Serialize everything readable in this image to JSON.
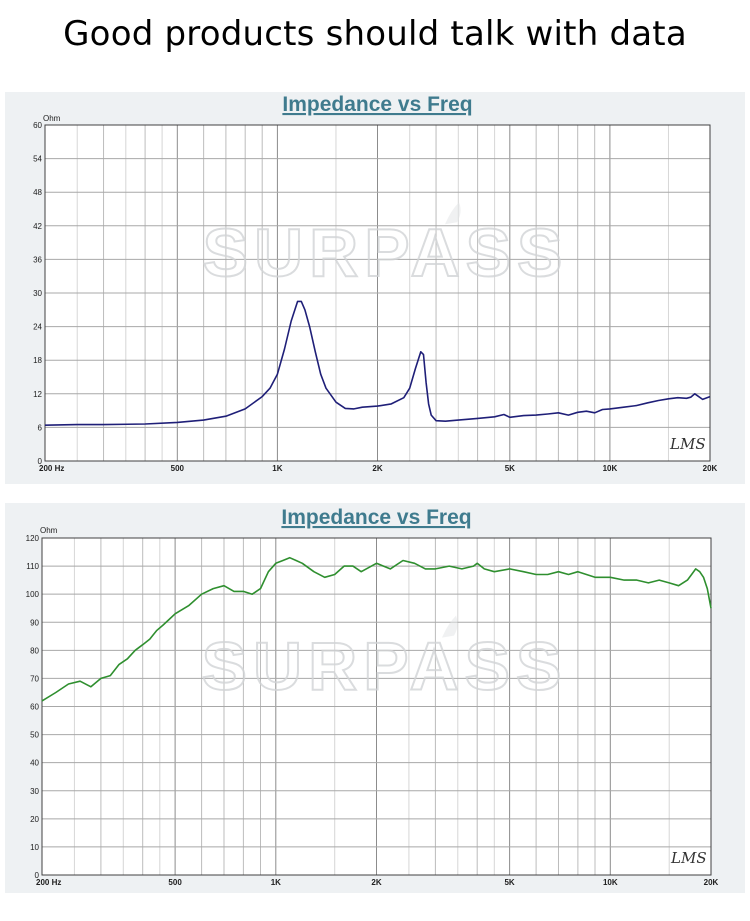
{
  "headline": "Good products should talk with data",
  "watermark": "SURPASS",
  "badge": "LMS",
  "chart_data": [
    {
      "type": "line",
      "title": "Impedance vs Freq",
      "ylabel": "Ohm",
      "xscale": "log",
      "xlim": [
        200,
        20000
      ],
      "ylim": [
        0,
        60
      ],
      "yticks": [
        "60",
        "54",
        "48",
        "42",
        "36",
        "30",
        "24",
        "18",
        "12",
        "6",
        "0"
      ],
      "xticks": [
        {
          "v": 200,
          "label": "200  Hz"
        },
        {
          "v": 500,
          "label": "500"
        },
        {
          "v": 1000,
          "label": "1K"
        },
        {
          "v": 2000,
          "label": "2K"
        },
        {
          "v": 5000,
          "label": "5K"
        },
        {
          "v": 10000,
          "label": "10K"
        },
        {
          "v": 20000,
          "label": "20K"
        }
      ],
      "grid": true,
      "color": "#1f1f78",
      "series": [
        {
          "x": [
            200,
            250,
            300,
            400,
            500,
            600,
            700,
            800,
            900,
            950,
            1000,
            1050,
            1100,
            1150,
            1180,
            1210,
            1250,
            1300,
            1350,
            1400,
            1500,
            1600,
            1700,
            1800,
            2000,
            2200,
            2400,
            2500,
            2600,
            2700,
            2750,
            2800,
            2850,
            2900,
            3000,
            3200,
            3500,
            4000,
            4500,
            4800,
            5000,
            5500,
            6000,
            6500,
            7000,
            7500,
            8000,
            8500,
            9000,
            9500,
            10000,
            11000,
            12000,
            13000,
            14000,
            15000,
            16000,
            17000,
            17500,
            18000,
            19000,
            20000
          ],
          "y": [
            6.4,
            6.5,
            6.5,
            6.6,
            6.9,
            7.3,
            8.0,
            9.3,
            11.5,
            13.0,
            15.5,
            20.0,
            25.0,
            28.5,
            28.5,
            27.0,
            24.0,
            19.5,
            15.5,
            13.0,
            10.5,
            9.4,
            9.3,
            9.6,
            9.8,
            10.2,
            11.3,
            13.0,
            16.5,
            19.5,
            19.0,
            14.0,
            10.2,
            8.2,
            7.2,
            7.1,
            7.3,
            7.6,
            7.9,
            8.3,
            7.8,
            8.1,
            8.2,
            8.4,
            8.6,
            8.2,
            8.7,
            8.9,
            8.6,
            9.2,
            9.3,
            9.6,
            9.9,
            10.4,
            10.8,
            11.1,
            11.3,
            11.2,
            11.4,
            12.0,
            11.0,
            11.5
          ]
        }
      ]
    },
    {
      "type": "line",
      "title": "Impedance vs Freq",
      "ylabel": "Ohm",
      "xscale": "log",
      "xlim": [
        200,
        20000
      ],
      "ylim": [
        0,
        120
      ],
      "yticks": [
        "120",
        "110",
        "100",
        "90",
        "80",
        "70",
        "60",
        "50",
        "40",
        "30",
        "20",
        "10",
        "0"
      ],
      "xticks": [
        {
          "v": 200,
          "label": "200  Hz"
        },
        {
          "v": 500,
          "label": "500"
        },
        {
          "v": 1000,
          "label": "1K"
        },
        {
          "v": 2000,
          "label": "2K"
        },
        {
          "v": 5000,
          "label": "5K"
        },
        {
          "v": 10000,
          "label": "10K"
        },
        {
          "v": 20000,
          "label": "20K"
        }
      ],
      "grid": true,
      "color": "#2f8f2f",
      "series": [
        {
          "x": [
            200,
            220,
            240,
            260,
            280,
            300,
            320,
            340,
            360,
            380,
            400,
            420,
            440,
            460,
            480,
            500,
            550,
            600,
            650,
            700,
            750,
            800,
            850,
            900,
            950,
            1000,
            1050,
            1100,
            1150,
            1200,
            1300,
            1400,
            1500,
            1600,
            1700,
            1800,
            2000,
            2200,
            2400,
            2600,
            2800,
            3000,
            3300,
            3600,
            3900,
            4000,
            4200,
            4500,
            5000,
            5500,
            6000,
            6500,
            7000,
            7500,
            8000,
            9000,
            10000,
            11000,
            12000,
            13000,
            14000,
            15000,
            16000,
            17000,
            17500,
            18000,
            18500,
            19000,
            19500,
            20000
          ],
          "y": [
            62,
            65,
            68,
            69,
            67,
            70,
            71,
            75,
            77,
            80,
            82,
            84,
            87,
            89,
            91,
            93,
            96,
            100,
            102,
            103,
            101,
            101,
            100,
            102,
            108,
            111,
            112,
            113,
            112,
            111,
            108,
            106,
            107,
            110,
            110,
            108,
            111,
            109,
            112,
            111,
            109,
            109,
            110,
            109,
            110,
            111,
            109,
            108,
            109,
            108,
            107,
            107,
            108,
            107,
            108,
            106,
            106,
            105,
            105,
            104,
            105,
            104,
            103,
            105,
            107,
            109,
            108,
            106,
            102,
            95
          ]
        }
      ]
    }
  ]
}
